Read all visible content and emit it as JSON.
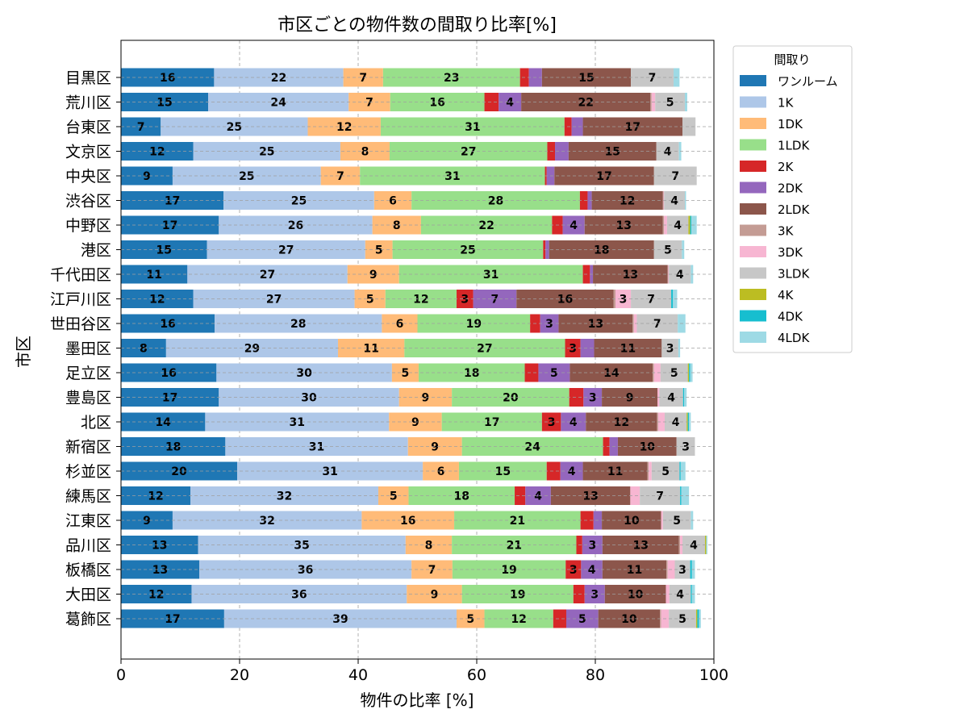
{
  "chart_data": {
    "type": "bar",
    "orientation": "horizontal-stacked",
    "title": "市区ごとの物件数の間取り比率[%]",
    "xlabel": "物件の比率 [%]",
    "ylabel": "市区",
    "xlim": [
      0,
      100
    ],
    "xticks": [
      "0",
      "20",
      "40",
      "60",
      "80",
      "100"
    ],
    "grid": true,
    "legend": {
      "title": "間取り",
      "placement": "upper-right-outside"
    },
    "categories": [
      "目黒区",
      "荒川区",
      "台東区",
      "文京区",
      "中央区",
      "渋谷区",
      "中野区",
      "港区",
      "千代田区",
      "江戸川区",
      "世田谷区",
      "墨田区",
      "足立区",
      "豊島区",
      "北区",
      "新宿区",
      "杉並区",
      "練馬区",
      "江東区",
      "品川区",
      "板橋区",
      "大田区",
      "葛飾区"
    ],
    "series": [
      {
        "name": "ワンルーム",
        "color": "#1f77b4",
        "values": [
          15.7,
          14.7,
          6.7,
          12.2,
          8.7,
          17.3,
          16.5,
          14.5,
          11.2,
          12.2,
          15.8,
          7.6,
          16.1,
          16.5,
          14.2,
          17.6,
          19.6,
          11.7,
          8.7,
          13.0,
          13.2,
          11.9,
          17.4
        ]
      },
      {
        "name": "1K",
        "color": "#aec7e8",
        "values": [
          21.8,
          23.7,
          24.8,
          24.8,
          25.0,
          25.4,
          25.9,
          26.7,
          27.0,
          27.2,
          28.2,
          29.0,
          29.6,
          30.4,
          31.0,
          30.8,
          31.3,
          31.7,
          31.9,
          35.0,
          35.8,
          36.3,
          39.2
        ]
      },
      {
        "name": "1DK",
        "color": "#ffbb78",
        "values": [
          6.7,
          7.0,
          12.3,
          8.3,
          6.6,
          6.3,
          8.2,
          4.6,
          8.7,
          5.2,
          6.0,
          11.2,
          4.5,
          8.9,
          8.9,
          9.1,
          6.1,
          5.1,
          15.6,
          7.8,
          6.9,
          9.3,
          4.7
        ]
      },
      {
        "name": "1LDK",
        "color": "#98df8a",
        "values": [
          23.1,
          15.9,
          31.0,
          26.6,
          31.2,
          28.4,
          22.1,
          25.4,
          31.0,
          12.0,
          19.0,
          27.1,
          17.9,
          19.8,
          16.9,
          23.8,
          14.8,
          17.9,
          21.3,
          21.0,
          19.1,
          18.8,
          11.6
        ]
      },
      {
        "name": "2K",
        "color": "#d62728",
        "values": [
          1.5,
          2.4,
          1.2,
          1.3,
          0.3,
          1.3,
          1.8,
          0.4,
          1.2,
          2.8,
          1.7,
          2.6,
          2.3,
          2.4,
          3.2,
          1.1,
          2.3,
          1.8,
          2.2,
          1.0,
          2.6,
          1.9,
          2.2
        ]
      },
      {
        "name": "2DK",
        "color": "#9467bd",
        "values": [
          2.2,
          3.8,
          1.9,
          2.3,
          1.3,
          0.7,
          3.7,
          0.6,
          0.5,
          7.3,
          3.1,
          2.3,
          5.3,
          3.1,
          4.2,
          1.4,
          3.8,
          4.3,
          1.4,
          3.4,
          3.6,
          3.4,
          5.4
        ]
      },
      {
        "name": "2LDK",
        "color": "#8c564b",
        "values": [
          15.0,
          21.8,
          16.8,
          14.8,
          16.8,
          12.0,
          13.2,
          17.7,
          12.6,
          16.4,
          12.5,
          11.4,
          14.0,
          9.4,
          12.0,
          9.9,
          10.9,
          13.4,
          10.0,
          12.9,
          10.8,
          10.3,
          10.4
        ]
      },
      {
        "name": "3K",
        "color": "#c49c94",
        "values": [
          0,
          0.2,
          0,
          0,
          0,
          0.1,
          0.2,
          0,
          0.1,
          0.3,
          0.2,
          0,
          0.2,
          0,
          0.2,
          0,
          0.2,
          0,
          0,
          0.2,
          0.2,
          0,
          0.2
        ]
      },
      {
        "name": "3DK",
        "color": "#f7b6d2",
        "values": [
          0,
          0.6,
          0,
          0,
          0,
          0.1,
          0.5,
          0,
          0.1,
          2.6,
          0.5,
          0,
          1.1,
          0.3,
          1.1,
          0,
          0.5,
          1.6,
          0.3,
          0.4,
          1.2,
          0.6,
          1.3
        ]
      },
      {
        "name": "3LDK",
        "color": "#c7c7c7",
        "values": [
          7.2,
          5.0,
          2.2,
          3.8,
          7.2,
          3.5,
          3.6,
          4.7,
          3.7,
          6.8,
          6.9,
          2.8,
          4.6,
          4.0,
          3.7,
          3.1,
          4.7,
          6.8,
          4.7,
          3.8,
          2.6,
          3.6,
          4.6
        ]
      },
      {
        "name": "4K",
        "color": "#bcbd22",
        "values": [
          0,
          0,
          0,
          0,
          0,
          0,
          0.3,
          0,
          0,
          0,
          0,
          0,
          0.2,
          0,
          0.2,
          0,
          0,
          0,
          0,
          0.2,
          0,
          0,
          0.2
        ]
      },
      {
        "name": "4DK",
        "color": "#17becf",
        "values": [
          0,
          0,
          0,
          0,
          0,
          0,
          0.2,
          0,
          0,
          0.3,
          0,
          0,
          0.2,
          0.2,
          0.2,
          0,
          0.2,
          0.2,
          0,
          0,
          0.3,
          0.2,
          0.3
        ]
      },
      {
        "name": "4LDK",
        "color": "#9edae5",
        "values": [
          1.0,
          0.4,
          0,
          0.4,
          0,
          0.2,
          0.9,
          0.4,
          0.4,
          0.7,
          1.3,
          0.3,
          0.4,
          0.4,
          0.3,
          0,
          0.8,
          1.3,
          0.4,
          0.2,
          0.5,
          0.5,
          0.3
        ]
      }
    ]
  }
}
